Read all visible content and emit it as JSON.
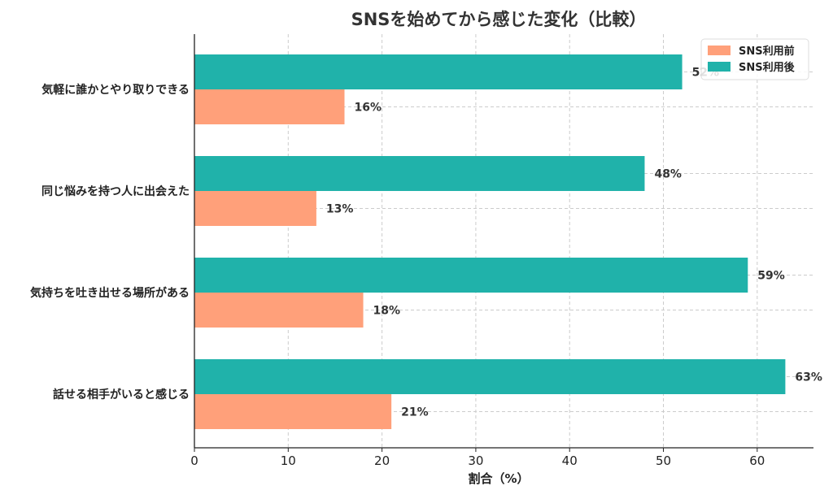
{
  "chart_data": {
    "type": "bar",
    "orientation": "horizontal",
    "title": "SNSを始めてから感じた変化（比較）",
    "xlabel": "割合（%）",
    "ylabel": "",
    "xlim": [
      0,
      66
    ],
    "xticks": [
      0,
      10,
      20,
      30,
      40,
      50,
      60
    ],
    "grid": true,
    "legend_position": "top-right",
    "categories": [
      "気軽に誰かとやり取りできる",
      "同じ悩みを持つ人に出会えた",
      "気持ちを吐き出せる場所がある",
      "話せる相手がいると感じる"
    ],
    "series": [
      {
        "name": "SNS利用前",
        "color": "#FFA07A",
        "values": [
          16,
          13,
          18,
          21
        ],
        "labels": [
          "16%",
          "13%",
          "18%",
          "21%"
        ]
      },
      {
        "name": "SNS利用後",
        "color": "#20B2AA",
        "values": [
          52,
          48,
          59,
          63
        ],
        "labels": [
          "52%",
          "48%",
          "59%",
          "63%"
        ]
      }
    ]
  }
}
